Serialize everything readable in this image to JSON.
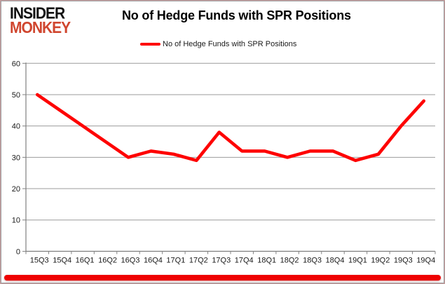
{
  "branding": {
    "logo_line1": "INSIDER",
    "logo_line2": "MONKEY",
    "logo_color_primary": "#121212",
    "logo_color_secondary": "#d0462f"
  },
  "header": {
    "title": "No of Hedge Funds with SPR Positions"
  },
  "legend": {
    "label": "No of Hedge Funds with SPR Positions",
    "swatch_color": "#fe0000"
  },
  "footer": {
    "bar_color": "#ee0202"
  },
  "chart_data": {
    "type": "line",
    "title": "No of Hedge Funds with SPR Positions",
    "categories": [
      "15Q3",
      "15Q4",
      "16Q1",
      "16Q2",
      "16Q3",
      "16Q4",
      "17Q1",
      "17Q2",
      "17Q3",
      "17Q4",
      "18Q1",
      "18Q2",
      "18Q3",
      "18Q4",
      "19Q1",
      "19Q2",
      "19Q3",
      "19Q4"
    ],
    "series": [
      {
        "name": "No of Hedge Funds with SPR Positions",
        "color": "#fe0000",
        "values": [
          50,
          45,
          40,
          35,
          30,
          32,
          31,
          29,
          38,
          32,
          32,
          30,
          32,
          32,
          29,
          31,
          40,
          48
        ]
      }
    ],
    "xlabel": "",
    "ylabel": "",
    "ylim": [
      0,
      60
    ],
    "yticks": [
      0,
      10,
      20,
      30,
      40,
      50,
      60
    ],
    "grid": true,
    "legend_position": "top"
  }
}
